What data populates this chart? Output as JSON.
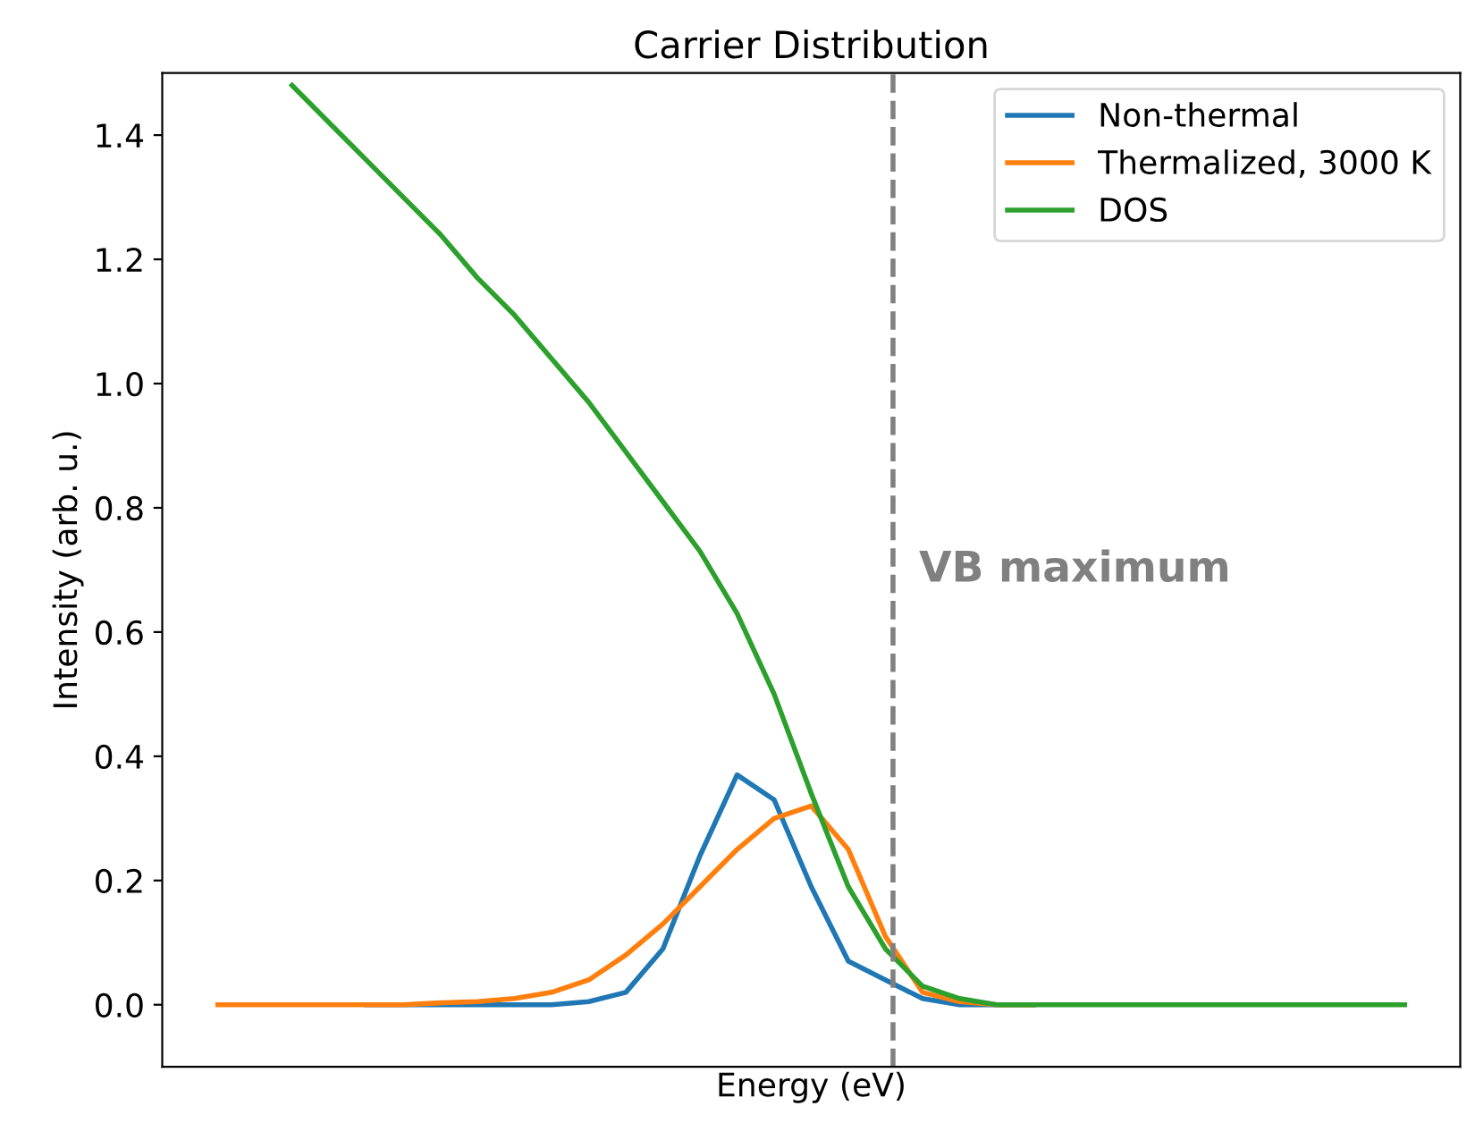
{
  "chart_data": {
    "type": "line",
    "title": "Carrier Distribution",
    "xlabel": "Energy (eV)",
    "ylabel": "Intensity (arb. u.)",
    "categories": [
      null,
      null,
      null,
      null,
      null,
      null,
      null,
      null,
      null,
      null,
      null,
      null,
      null,
      null,
      null,
      null,
      null,
      null,
      null,
      null,
      null,
      null,
      null,
      null,
      null,
      null,
      null,
      null,
      null,
      null,
      null,
      null,
      null
    ],
    "series": [
      {
        "name": "Non-thermal",
        "color": "#1f77b4",
        "values": [
          null,
          null,
          null,
          null,
          0,
          0,
          0,
          0,
          0,
          0,
          0.005,
          0.02,
          0.09,
          0.24,
          0.37,
          0.33,
          0.19,
          0.07,
          0.04,
          0.01,
          0,
          0,
          0,
          null,
          null,
          null,
          null,
          null,
          null,
          null,
          null,
          null,
          null
        ]
      },
      {
        "name": "Thermalized, 3000 K",
        "color": "#ff7f0e",
        "values": [
          0,
          0,
          0,
          0,
          0,
          0,
          0.003,
          0.005,
          0.01,
          0.02,
          0.04,
          0.08,
          0.13,
          0.19,
          0.25,
          0.3,
          0.32,
          0.25,
          0.11,
          0.02,
          0.005,
          0,
          0,
          null,
          null,
          null,
          null,
          null,
          null,
          null,
          null,
          null,
          null
        ]
      },
      {
        "name": "DOS",
        "color": "#2ca02c",
        "values": [
          null,
          null,
          1.48,
          1.42,
          1.36,
          1.3,
          1.24,
          1.17,
          1.11,
          1.04,
          0.97,
          0.89,
          0.81,
          0.73,
          0.63,
          0.5,
          0.34,
          0.19,
          0.09,
          0.03,
          0.01,
          0,
          0,
          0,
          0,
          0,
          0,
          0,
          0,
          0,
          0,
          0,
          0
        ]
      }
    ],
    "ylim": [
      -0.1,
      1.5
    ],
    "yticks": [
      {
        "value": 0,
        "label": "0.0"
      },
      0.2,
      0.4,
      0.6,
      0.8,
      {
        "value": 1,
        "label": "1.0"
      },
      1.2,
      1.4
    ],
    "annotations": [
      "VB maximum"
    ],
    "legend": "top right",
    "tick_labels": "y"
  }
}
